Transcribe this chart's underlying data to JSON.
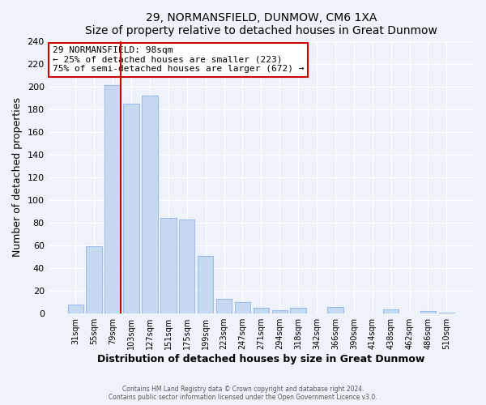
{
  "title": "29, NORMANSFIELD, DUNMOW, CM6 1XA",
  "subtitle": "Size of property relative to detached houses in Great Dunmow",
  "xlabel": "Distribution of detached houses by size in Great Dunmow",
  "ylabel": "Number of detached properties",
  "bar_labels": [
    "31sqm",
    "55sqm",
    "79sqm",
    "103sqm",
    "127sqm",
    "151sqm",
    "175sqm",
    "199sqm",
    "223sqm",
    "247sqm",
    "271sqm",
    "294sqm",
    "318sqm",
    "342sqm",
    "366sqm",
    "390sqm",
    "414sqm",
    "438sqm",
    "462sqm",
    "486sqm",
    "510sqm"
  ],
  "bar_heights": [
    8,
    59,
    201,
    185,
    192,
    84,
    83,
    51,
    13,
    10,
    5,
    3,
    5,
    0,
    6,
    0,
    0,
    4,
    0,
    2,
    1
  ],
  "bar_color": "#c5d9f1",
  "bar_edge_color": "#9dbde8",
  "marker_line_color": "#cc0000",
  "marker_line_bar_index": 2,
  "annotation_title": "29 NORMANSFIELD: 98sqm",
  "annotation_line1": "← 25% of detached houses are smaller (223)",
  "annotation_line2": "75% of semi-detached houses are larger (672) →",
  "annotation_box_edge": "#cc0000",
  "ylim": [
    0,
    240
  ],
  "yticks": [
    0,
    20,
    40,
    60,
    80,
    100,
    120,
    140,
    160,
    180,
    200,
    220,
    240
  ],
  "footer1": "Contains HM Land Registry data © Crown copyright and database right 2024.",
  "footer2": "Contains public sector information licensed under the Open Government Licence v3.0.",
  "bg_color": "#eef2f9"
}
